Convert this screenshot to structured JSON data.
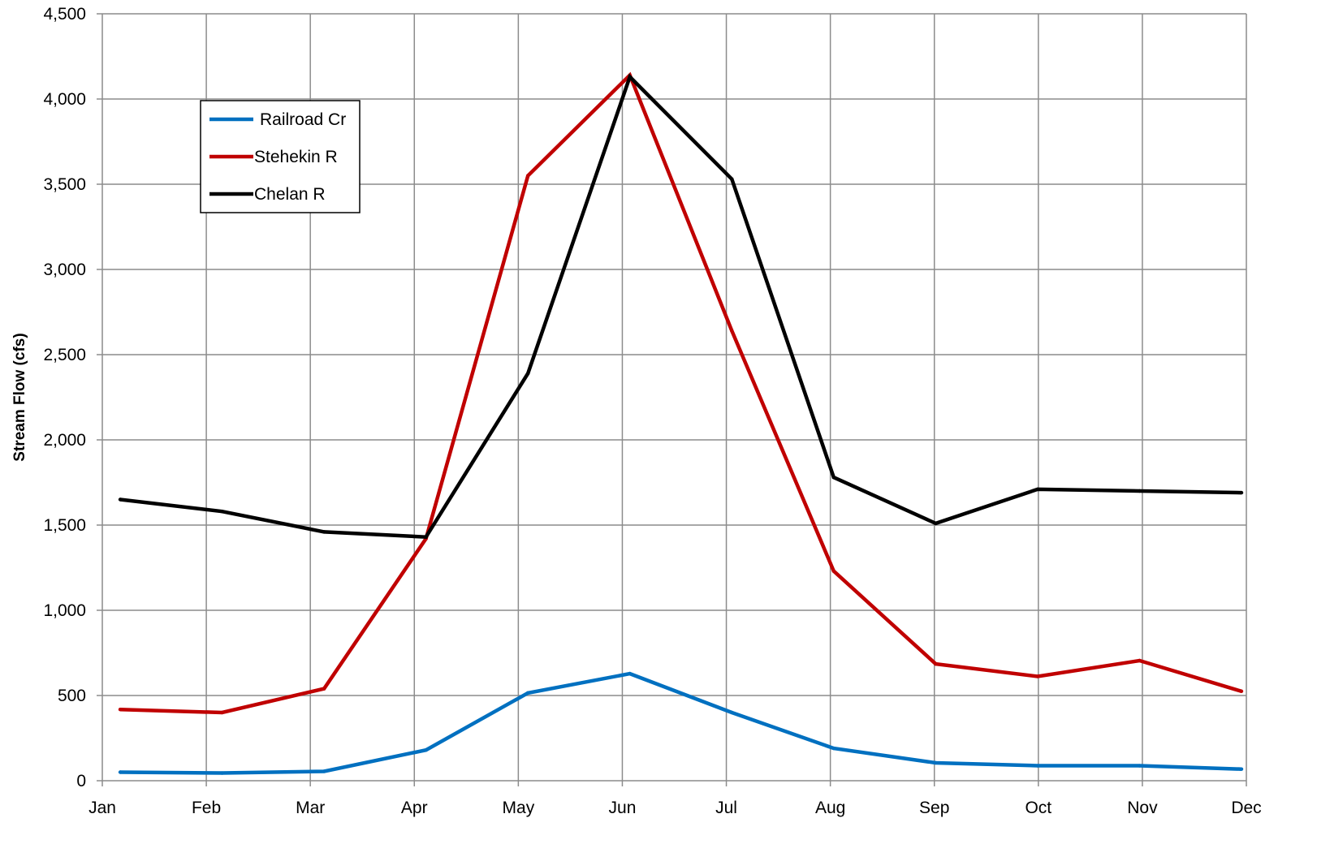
{
  "chart_data": {
    "type": "line",
    "title": "",
    "xlabel": "",
    "ylabel": "Stream Flow (cfs)",
    "ylim": [
      0,
      4500
    ],
    "y_ticks": [
      0,
      500,
      1000,
      1500,
      2000,
      2500,
      3000,
      3500,
      4000,
      4500
    ],
    "y_tick_labels": [
      "0",
      "500",
      "1,000",
      "1,500",
      "2,000",
      "2,500",
      "3,000",
      "3,500",
      "4,000",
      "4,500"
    ],
    "categories": [
      "Jan",
      "Feb",
      "Mar",
      "Apr",
      "May",
      "Jun",
      "Jul",
      "Aug",
      "Sep",
      "Oct",
      "Nov",
      "Dec"
    ],
    "grid": true,
    "legend_position": "top-left",
    "series": [
      {
        "name": "Railroad Cr",
        "color": "#0070C0",
        "values": [
          50,
          45,
          55,
          180,
          515,
          628,
          400,
          190,
          105,
          88,
          88,
          68
        ]
      },
      {
        "name": "Stehekin R",
        "color": "#C00000",
        "values": [
          418,
          400,
          540,
          1420,
          3550,
          4140,
          2640,
          1230,
          685,
          612,
          705,
          525
        ]
      },
      {
        "name": "Chelan R",
        "color": "#000000",
        "values": [
          1650,
          1580,
          1460,
          1430,
          2390,
          4130,
          3530,
          1780,
          1510,
          1710,
          1700,
          1690
        ]
      }
    ]
  }
}
